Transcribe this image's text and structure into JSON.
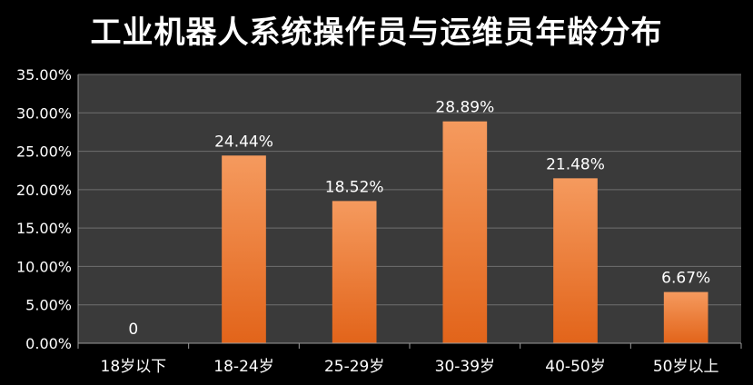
{
  "chart_data": {
    "type": "bar",
    "title": "工业机器人系统操作员与运维员年龄分布",
    "categories": [
      "18岁以下",
      "18-24岁",
      "25-29岁",
      "30-39岁",
      "40-50岁",
      "50岁以上"
    ],
    "values": [
      0,
      24.44,
      18.52,
      28.89,
      21.48,
      6.67
    ],
    "data_labels": [
      "0",
      "24.44%",
      "18.52%",
      "28.89%",
      "21.48%",
      "6.67%"
    ],
    "ylim": [
      0,
      35
    ],
    "y_ticks": [
      0,
      5,
      10,
      15,
      20,
      25,
      30,
      35
    ],
    "y_tick_labels": [
      "0.00%",
      "5.00%",
      "10.00%",
      "15.00%",
      "20.00%",
      "25.00%",
      "30.00%",
      "35.00%"
    ],
    "xlabel": "",
    "ylabel": "",
    "grid": true,
    "legend": "none",
    "colors": {
      "background": "#000000",
      "plot_background": "#3a3a3a",
      "gridline": "#6f6f6f",
      "bar_top": "#f59a5e",
      "bar_bottom": "#e2641a",
      "text": "#ffffff"
    }
  }
}
